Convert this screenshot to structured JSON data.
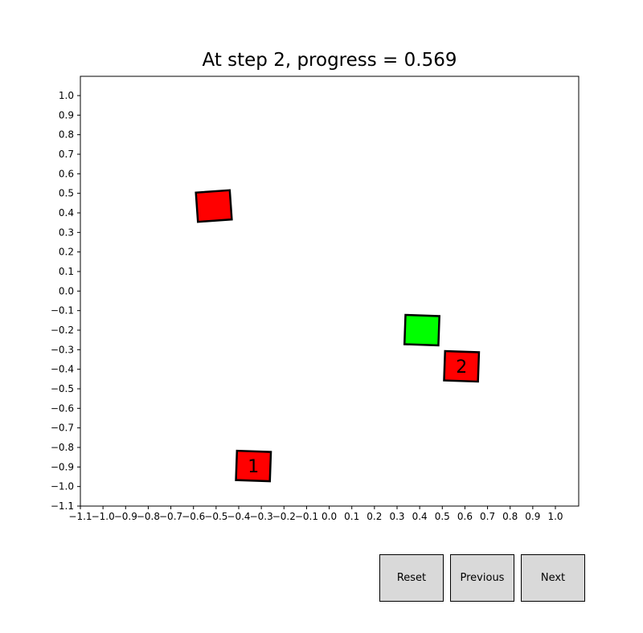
{
  "title": "At step 2, progress = 0.569",
  "buttons": {
    "reset": "Reset",
    "previous": "Previous",
    "next": "Next"
  },
  "colors": {
    "obstacle": "#ff0000",
    "agent": "#00ff00",
    "edge": "#000000"
  },
  "chart_data": {
    "type": "scatter",
    "xlim": [
      -1.1,
      1.1
    ],
    "ylim": [
      -1.1,
      1.1
    ],
    "xticks": [
      "-1.1",
      "-1.0",
      "-0.9",
      "-0.8",
      "-0.7",
      "-0.6",
      "-0.5",
      "-0.4",
      "-0.3",
      "-0.2",
      "-0.1",
      "0.0",
      "0.1",
      "0.2",
      "0.3",
      "0.4",
      "0.5",
      "0.6",
      "0.7",
      "0.8",
      "0.9",
      "1.0"
    ],
    "yticks": [
      "-1.1",
      "-1.0",
      "-0.9",
      "-0.8",
      "-0.7",
      "-0.6",
      "-0.5",
      "-0.4",
      "-0.3",
      "-0.2",
      "-0.1",
      "0.0",
      "0.1",
      "0.2",
      "0.3",
      "0.4",
      "0.5",
      "0.6",
      "0.7",
      "0.8",
      "0.9",
      "1.0"
    ],
    "squares": [
      {
        "x": -0.51,
        "y": 0.435,
        "size": 0.15,
        "angle": 4,
        "color": "#ff0000",
        "label": ""
      },
      {
        "x": 0.41,
        "y": -0.2,
        "size": 0.15,
        "angle": -2,
        "color": "#00ff00",
        "label": ""
      },
      {
        "x": 0.585,
        "y": -0.385,
        "size": 0.15,
        "angle": -2,
        "color": "#ff0000",
        "label": "2"
      },
      {
        "x": -0.335,
        "y": -0.895,
        "size": 0.15,
        "angle": -2,
        "color": "#ff0000",
        "label": "1"
      }
    ]
  }
}
